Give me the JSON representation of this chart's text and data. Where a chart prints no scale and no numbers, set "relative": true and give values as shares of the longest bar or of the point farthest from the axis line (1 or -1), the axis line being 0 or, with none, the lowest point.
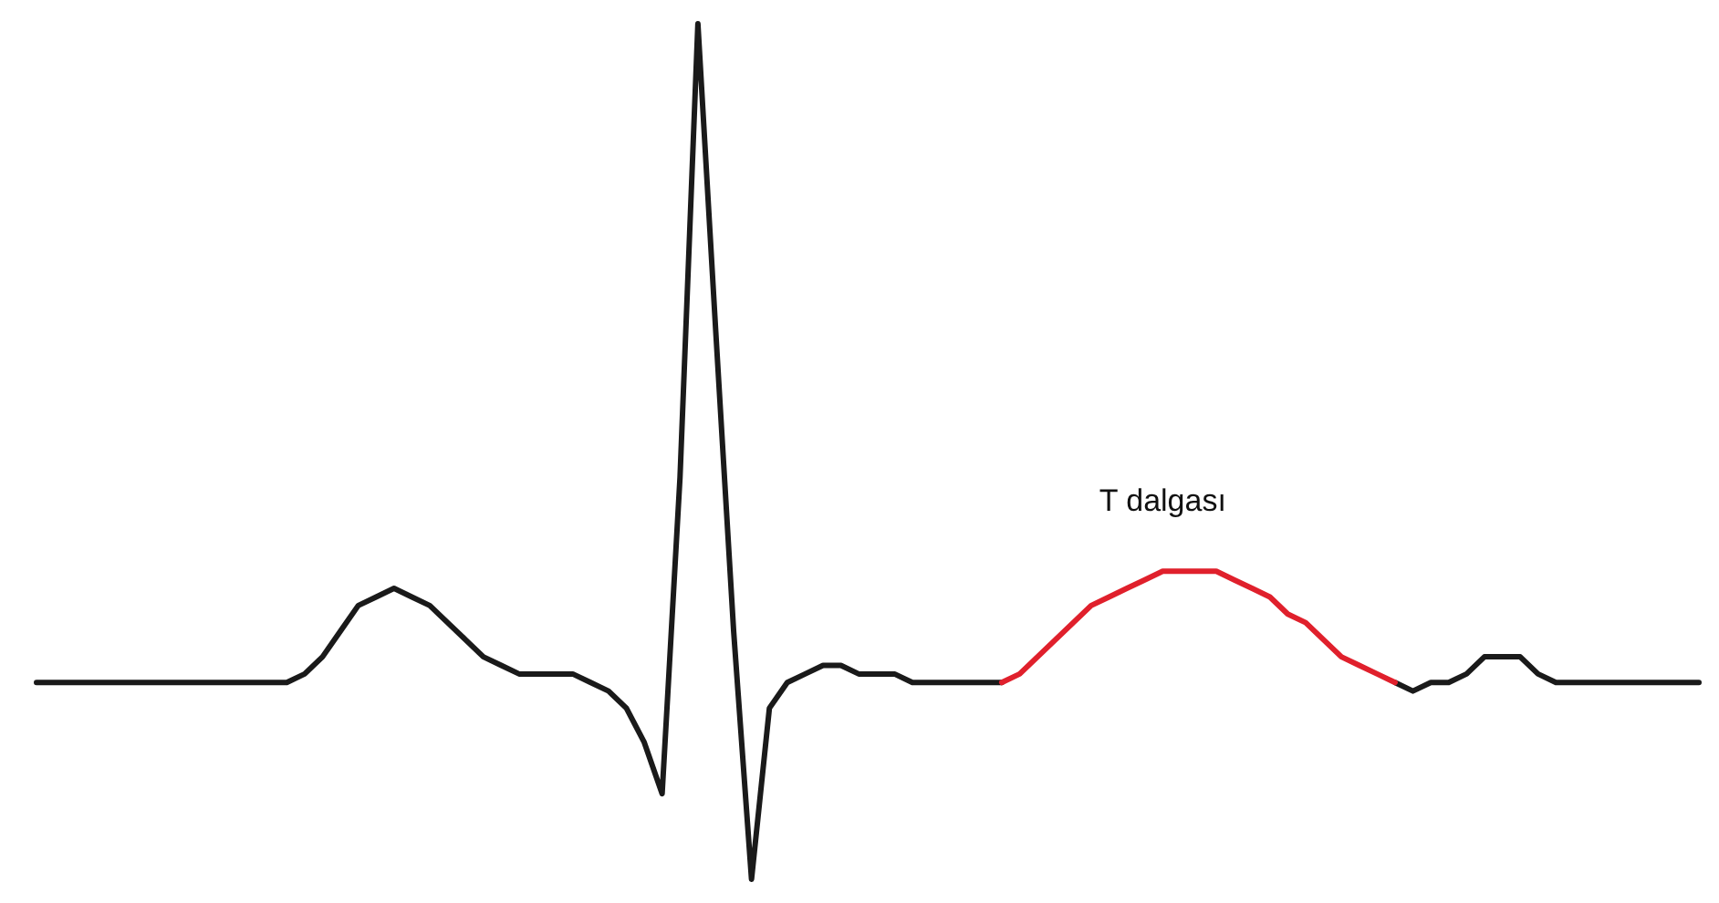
{
  "chart_data": {
    "type": "line",
    "relative": true,
    "categories": [
      null,
      null,
      null,
      null,
      null,
      null,
      null,
      null,
      null,
      null,
      null,
      null,
      null,
      null,
      null,
      null,
      null,
      null,
      null,
      null,
      null,
      null,
      null,
      null,
      null,
      null,
      null,
      null,
      null,
      null,
      null,
      null,
      null,
      null,
      null,
      null,
      null,
      null,
      null,
      null,
      null,
      null,
      null,
      null,
      null,
      null,
      null,
      null,
      null,
      null,
      null,
      null,
      null,
      null,
      null,
      null,
      null,
      null,
      null,
      null,
      null,
      null,
      null,
      null,
      null,
      null,
      null,
      null,
      null,
      null,
      null,
      null,
      null,
      null,
      null,
      null,
      null,
      null,
      null,
      null,
      null,
      null,
      null,
      null,
      null,
      null,
      null,
      null,
      null,
      null,
      null,
      null,
      null,
      null
    ],
    "series": [
      {
        "color": "#1a1a1a",
        "values": [
          0.23,
          0.23,
          0.23,
          0.23,
          0.23,
          0.23,
          0.23,
          0.23,
          0.23,
          0.23,
          0.23,
          0.23,
          0.23,
          0.23,
          0.23,
          0.24,
          0.26,
          0.29,
          0.32,
          0.33,
          0.34,
          0.33,
          0.32,
          0.3,
          0.28,
          0.26,
          0.25,
          0.24,
          0.24,
          0.24,
          0.24,
          0.23,
          0.22,
          0.2,
          0.16,
          0.1,
          0.47,
          1,
          0.64,
          0.29,
          0,
          0.2,
          0.23,
          0.24,
          0.25,
          0.25,
          0.24,
          0.24,
          0.24,
          0.23,
          0.23,
          0.23,
          0.23,
          0.23,
          0.23,
          null,
          null,
          null,
          null,
          null,
          null,
          null,
          null,
          null,
          null,
          null,
          null,
          null,
          null,
          null,
          null,
          null,
          null,
          null,
          null,
          null,
          0.23,
          0.22,
          0.23,
          0.23,
          0.24,
          0.26,
          0.26,
          0.26,
          0.24,
          0.23,
          0.23,
          0.23,
          0.23,
          0.23,
          0.23,
          0.23,
          0.23,
          0.23
        ]
      },
      {
        "color": "#e0202c",
        "values": [
          null,
          null,
          null,
          null,
          null,
          null,
          null,
          null,
          null,
          null,
          null,
          null,
          null,
          null,
          null,
          null,
          null,
          null,
          null,
          null,
          null,
          null,
          null,
          null,
          null,
          null,
          null,
          null,
          null,
          null,
          null,
          null,
          null,
          null,
          null,
          null,
          null,
          null,
          null,
          null,
          null,
          null,
          null,
          null,
          null,
          null,
          null,
          null,
          null,
          null,
          null,
          null,
          null,
          null,
          0.23,
          0.24,
          0.26,
          0.28,
          0.3,
          0.32,
          0.33,
          0.34,
          0.35,
          0.36,
          0.36,
          0.36,
          0.36,
          0.35,
          0.34,
          0.33,
          0.31,
          0.3,
          0.28,
          0.26,
          0.25,
          0.24,
          0.23,
          null,
          null,
          null,
          null,
          null,
          null,
          null,
          null,
          null,
          null,
          null,
          null,
          null,
          null,
          null,
          null,
          null
        ]
      }
    ],
    "annotations": [
      "T dalgası"
    ]
  }
}
